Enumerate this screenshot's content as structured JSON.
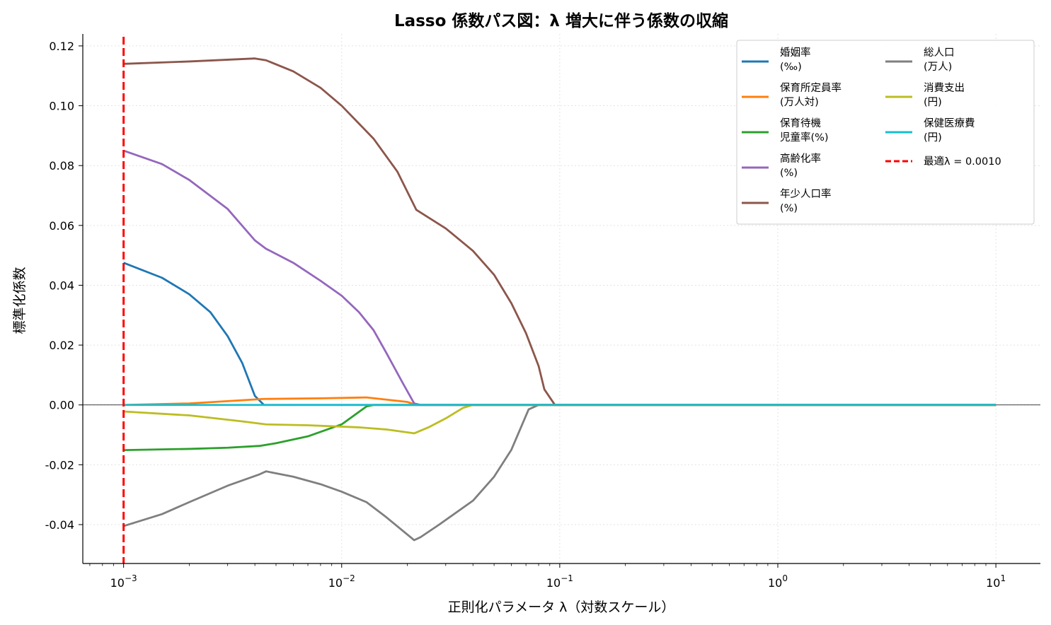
{
  "chart_data": {
    "type": "line",
    "title": "Lasso 係数パス図：λ 増大に伴う係数の収縮",
    "xlabel": "正則化パラメータ λ（対数スケール）",
    "ylabel": "標準化係数",
    "x_scale": "log",
    "xlim": [
      0.00065,
      16
    ],
    "ylim": [
      -0.053,
      0.124
    ],
    "x_ticks": [
      {
        "value": 0.001,
        "base": "10",
        "exp": "−3"
      },
      {
        "value": 0.01,
        "base": "10",
        "exp": "−2"
      },
      {
        "value": 0.1,
        "base": "10",
        "exp": "−1"
      },
      {
        "value": 1,
        "base": "10",
        "exp": "0"
      },
      {
        "value": 10,
        "base": "10",
        "exp": "1"
      }
    ],
    "y_ticks": [
      {
        "value": 0.12,
        "label": "0.12"
      },
      {
        "value": 0.1,
        "label": "0.10"
      },
      {
        "value": 0.08,
        "label": "0.08"
      },
      {
        "value": 0.06,
        "label": "0.06"
      },
      {
        "value": 0.04,
        "label": "0.04"
      },
      {
        "value": 0.02,
        "label": "0.02"
      },
      {
        "value": 0.0,
        "label": "0.00"
      },
      {
        "value": -0.02,
        "label": "-0.02"
      },
      {
        "value": -0.04,
        "label": "-0.04"
      }
    ],
    "grid": true,
    "legend_position": "top-right",
    "legend_columns": 2,
    "series": [
      {
        "name": [
          "婚姻率",
          "(‰)"
        ],
        "color": "#1f77b4",
        "points": [
          [
            0.001,
            0.0475
          ],
          [
            0.0015,
            0.0425
          ],
          [
            0.002,
            0.037
          ],
          [
            0.0025,
            0.031
          ],
          [
            0.003,
            0.023
          ],
          [
            0.0035,
            0.014
          ],
          [
            0.004,
            0.003
          ],
          [
            0.0044,
            0.0
          ],
          [
            10,
            0.0
          ]
        ]
      },
      {
        "name": [
          "保育所定員率",
          "(万人対)"
        ],
        "color": "#ff7f0e",
        "points": [
          [
            0.001,
            0.0
          ],
          [
            0.002,
            0.0005
          ],
          [
            0.0044,
            0.002
          ],
          [
            0.008,
            0.0022
          ],
          [
            0.013,
            0.0025
          ],
          [
            0.02,
            0.001
          ],
          [
            0.022,
            0.0
          ],
          [
            10,
            0.0
          ]
        ]
      },
      {
        "name": [
          "保育待機",
          "児童率(%)"
        ],
        "color": "#2ca02c",
        "points": [
          [
            0.001,
            -0.0151
          ],
          [
            0.002,
            -0.0147
          ],
          [
            0.003,
            -0.0143
          ],
          [
            0.0042,
            -0.0137
          ],
          [
            0.005,
            -0.0128
          ],
          [
            0.007,
            -0.0105
          ],
          [
            0.01,
            -0.0065
          ],
          [
            0.013,
            -0.0005
          ],
          [
            0.014,
            0.0
          ],
          [
            10,
            0.0
          ]
        ]
      },
      {
        "name": [
          "高齢化率",
          "(%)"
        ],
        "color": "#9467bd",
        "points": [
          [
            0.001,
            0.085
          ],
          [
            0.0015,
            0.0805
          ],
          [
            0.002,
            0.0752
          ],
          [
            0.003,
            0.0655
          ],
          [
            0.004,
            0.055
          ],
          [
            0.0045,
            0.0522
          ],
          [
            0.006,
            0.0475
          ],
          [
            0.008,
            0.0415
          ],
          [
            0.01,
            0.0365
          ],
          [
            0.012,
            0.031
          ],
          [
            0.014,
            0.025
          ],
          [
            0.016,
            0.0175
          ],
          [
            0.019,
            0.0075
          ],
          [
            0.0215,
            0.0005
          ],
          [
            0.023,
            0.0
          ],
          [
            10,
            0.0
          ]
        ]
      },
      {
        "name": [
          "年少人口率",
          "(%)"
        ],
        "color": "#8c564b",
        "points": [
          [
            0.001,
            0.114
          ],
          [
            0.002,
            0.1148
          ],
          [
            0.004,
            0.1158
          ],
          [
            0.0045,
            0.1152
          ],
          [
            0.006,
            0.1115
          ],
          [
            0.008,
            0.106
          ],
          [
            0.01,
            0.1
          ],
          [
            0.014,
            0.089
          ],
          [
            0.018,
            0.078
          ],
          [
            0.022,
            0.0652
          ],
          [
            0.03,
            0.059
          ],
          [
            0.04,
            0.0515
          ],
          [
            0.05,
            0.0435
          ],
          [
            0.06,
            0.034
          ],
          [
            0.07,
            0.024
          ],
          [
            0.08,
            0.013
          ],
          [
            0.085,
            0.0052
          ],
          [
            0.095,
            0.0
          ],
          [
            10,
            0.0
          ]
        ]
      },
      {
        "name": [
          "総人口",
          "(万人)"
        ],
        "color": "#7f7f7f",
        "points": [
          [
            0.001,
            -0.0405
          ],
          [
            0.0015,
            -0.0365
          ],
          [
            0.002,
            -0.0325
          ],
          [
            0.003,
            -0.027
          ],
          [
            0.0042,
            -0.0232
          ],
          [
            0.0045,
            -0.0222
          ],
          [
            0.006,
            -0.024
          ],
          [
            0.008,
            -0.0265
          ],
          [
            0.01,
            -0.029
          ],
          [
            0.013,
            -0.0325
          ],
          [
            0.016,
            -0.0375
          ],
          [
            0.0215,
            -0.0452
          ],
          [
            0.023,
            -0.0442
          ],
          [
            0.028,
            -0.04
          ],
          [
            0.04,
            -0.032
          ],
          [
            0.05,
            -0.024
          ],
          [
            0.06,
            -0.015
          ],
          [
            0.072,
            -0.0015
          ],
          [
            0.08,
            0.0
          ],
          [
            10,
            0.0
          ]
        ]
      },
      {
        "name": [
          "消費支出",
          "(円)"
        ],
        "color": "#bcbd22",
        "points": [
          [
            0.001,
            -0.0022
          ],
          [
            0.002,
            -0.0035
          ],
          [
            0.0035,
            -0.0055
          ],
          [
            0.0045,
            -0.0065
          ],
          [
            0.007,
            -0.0068
          ],
          [
            0.012,
            -0.0075
          ],
          [
            0.016,
            -0.0082
          ],
          [
            0.0215,
            -0.0095
          ],
          [
            0.025,
            -0.0075
          ],
          [
            0.03,
            -0.0045
          ],
          [
            0.036,
            -0.001
          ],
          [
            0.04,
            0.0
          ],
          [
            10,
            0.0
          ]
        ]
      },
      {
        "name": [
          "保健医療費",
          "(円)"
        ],
        "color": "#17becf",
        "points": [
          [
            0.001,
            0.0
          ],
          [
            10,
            0.0
          ]
        ]
      }
    ],
    "vline": {
      "x": 0.001,
      "color": "#ff0000",
      "style": "dashed",
      "label": "最適λ = 0.0010"
    }
  }
}
